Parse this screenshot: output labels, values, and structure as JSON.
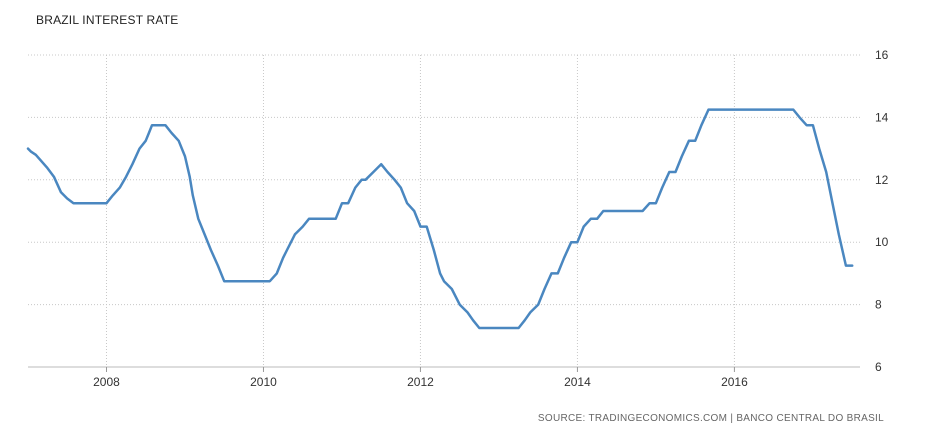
{
  "chart_data": {
    "type": "line",
    "title": "BRAZIL INTEREST RATE",
    "xlabel": "",
    "ylabel": "",
    "xlim": [
      2007.0,
      2017.6
    ],
    "ylim": [
      6,
      16
    ],
    "xticks": [
      2008,
      2010,
      2012,
      2014,
      2016
    ],
    "yticks": [
      6,
      8,
      10,
      12,
      14,
      16
    ],
    "y_axis_side": "right",
    "grid": true,
    "line_color": "#4a87c0",
    "series": [
      {
        "x": [
          2007.0,
          2007.04,
          2007.1,
          2007.17,
          2007.24,
          2007.33,
          2007.42,
          2007.5,
          2007.58,
          2007.67,
          2007.75,
          2007.83,
          2007.92,
          2008.0,
          2008.08,
          2008.17,
          2008.25,
          2008.33,
          2008.42,
          2008.5,
          2008.54,
          2008.58,
          2008.67,
          2008.75,
          2008.83,
          2008.92,
          2009.0,
          2009.06,
          2009.1,
          2009.17,
          2009.25,
          2009.33,
          2009.42,
          2009.5,
          2009.58,
          2009.67,
          2009.75,
          2009.83,
          2009.92,
          2010.0,
          2010.08,
          2010.17,
          2010.25,
          2010.3,
          2010.4,
          2010.5,
          2010.58,
          2010.67,
          2010.75,
          2010.83,
          2010.92,
          2011.0,
          2011.08,
          2011.17,
          2011.25,
          2011.3,
          2011.4,
          2011.5,
          2011.58,
          2011.67,
          2011.75,
          2011.83,
          2011.92,
          2012.0,
          2012.08,
          2012.17,
          2012.25,
          2012.3,
          2012.4,
          2012.5,
          2012.6,
          2012.67,
          2012.75,
          2012.8,
          2012.92,
          2013.0,
          2013.08,
          2013.17,
          2013.25,
          2013.33,
          2013.4,
          2013.5,
          2013.58,
          2013.67,
          2013.75,
          2013.83,
          2013.92,
          2014.0,
          2014.08,
          2014.17,
          2014.25,
          2014.33,
          2014.42,
          2014.5,
          2014.58,
          2014.67,
          2014.75,
          2014.83,
          2014.92,
          2015.0,
          2015.08,
          2015.17,
          2015.25,
          2015.33,
          2015.42,
          2015.5,
          2015.58,
          2015.67,
          2015.75,
          2015.83,
          2015.92,
          2016.0,
          2016.25,
          2016.5,
          2016.75,
          2016.83,
          2016.92,
          2017.0,
          2017.08,
          2017.17,
          2017.25,
          2017.33,
          2017.42,
          2017.5
        ],
        "y": [
          13.0,
          12.9,
          12.8,
          12.6,
          12.4,
          12.1,
          11.6,
          11.4,
          11.25,
          11.25,
          11.25,
          11.25,
          11.25,
          11.25,
          11.5,
          11.75,
          12.1,
          12.5,
          13.0,
          13.25,
          13.5,
          13.75,
          13.75,
          13.75,
          13.5,
          13.25,
          12.75,
          12.1,
          11.5,
          10.75,
          10.25,
          9.75,
          9.25,
          8.75,
          8.75,
          8.75,
          8.75,
          8.75,
          8.75,
          8.75,
          8.75,
          9.0,
          9.5,
          9.75,
          10.25,
          10.5,
          10.75,
          10.75,
          10.75,
          10.75,
          10.75,
          11.25,
          11.25,
          11.75,
          12.0,
          12.0,
          12.25,
          12.5,
          12.25,
          12.0,
          11.75,
          11.25,
          11.0,
          10.5,
          10.5,
          9.75,
          9.0,
          8.75,
          8.5,
          8.0,
          7.75,
          7.5,
          7.25,
          7.25,
          7.25,
          7.25,
          7.25,
          7.25,
          7.25,
          7.5,
          7.75,
          8.0,
          8.5,
          9.0,
          9.0,
          9.5,
          10.0,
          10.0,
          10.5,
          10.75,
          10.75,
          11.0,
          11.0,
          11.0,
          11.0,
          11.0,
          11.0,
          11.0,
          11.25,
          11.25,
          11.75,
          12.25,
          12.25,
          12.75,
          13.25,
          13.25,
          13.75,
          14.25,
          14.25,
          14.25,
          14.25,
          14.25,
          14.25,
          14.25,
          14.25,
          14.0,
          13.75,
          13.75,
          13.0,
          12.25,
          11.25,
          10.25,
          9.25,
          9.25
        ]
      }
    ],
    "source": "SOURCE: TRADINGECONOMICS.COM | BANCO CENTRAL DO BRASIL"
  }
}
